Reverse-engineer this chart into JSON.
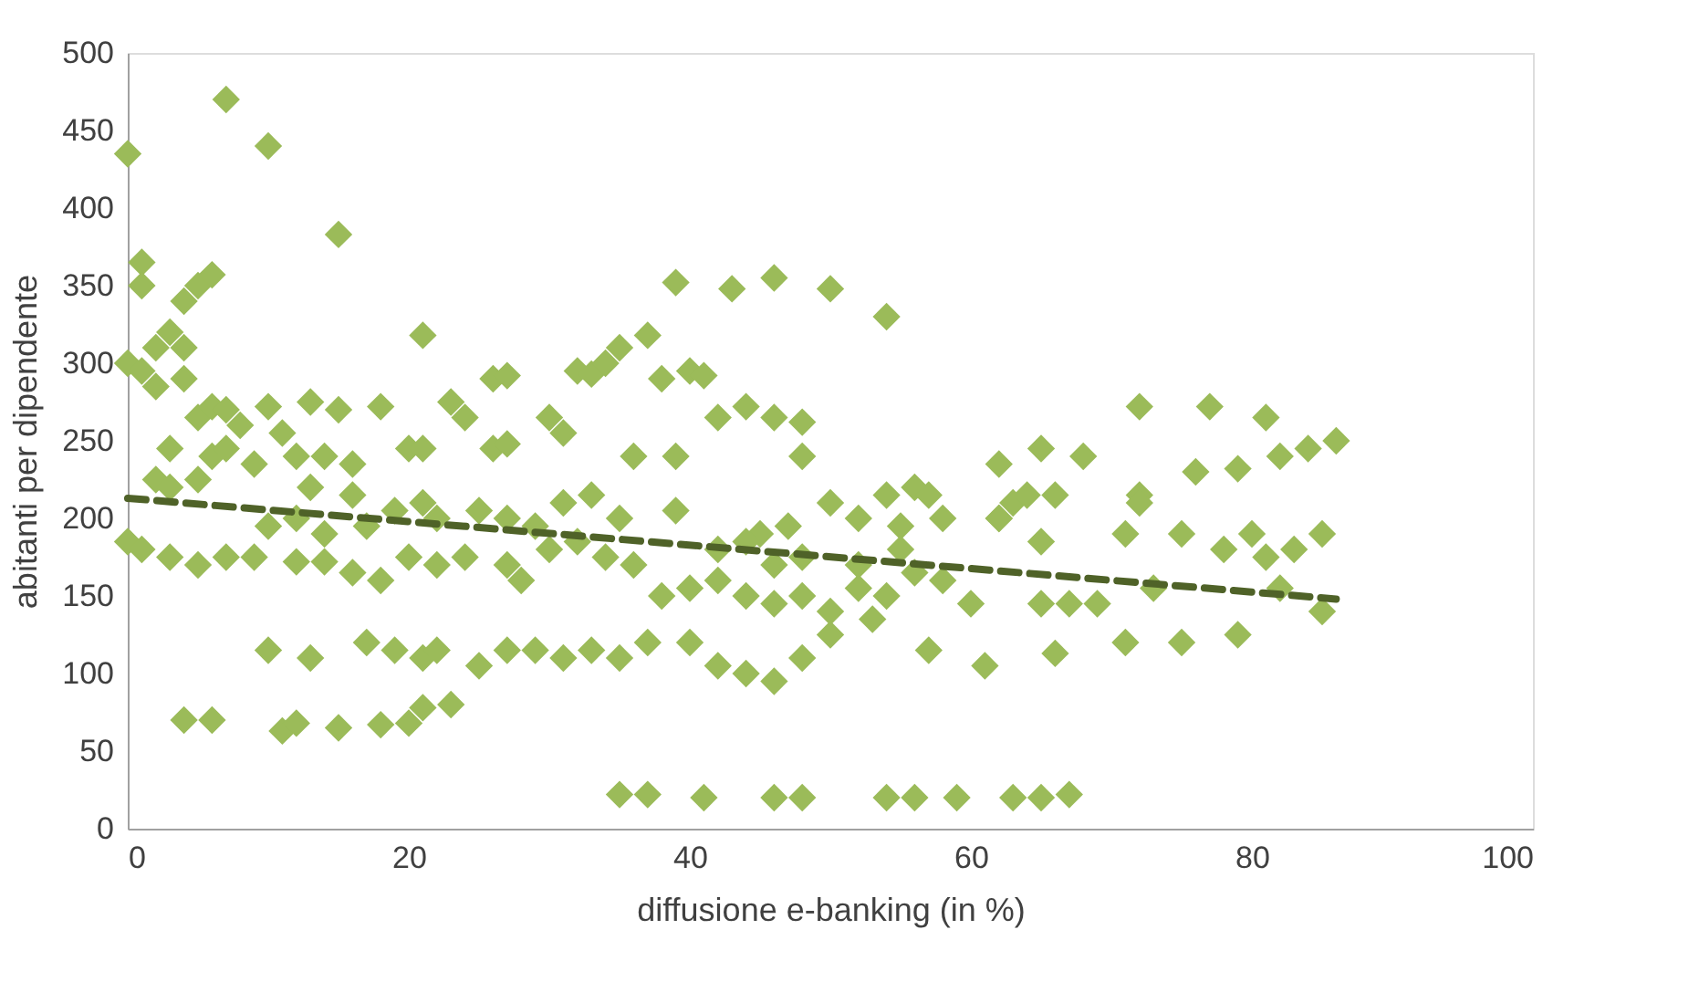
{
  "chart_data": {
    "type": "scatter",
    "xlabel": "diffusione e-banking (in %)",
    "ylabel": "abitanti per dipendente",
    "xlim": [
      0,
      100
    ],
    "ylim": [
      0,
      500
    ],
    "xticks": [
      0,
      20,
      40,
      60,
      80,
      100
    ],
    "yticks": [
      0,
      50,
      100,
      150,
      200,
      250,
      300,
      350,
      400,
      450,
      500
    ],
    "grid": false,
    "series": [
      {
        "color": "#9bbb59",
        "marker": "diamond",
        "x": [
          0,
          7,
          10,
          15,
          1,
          1,
          5,
          6,
          4,
          21,
          3,
          2,
          4,
          0,
          1,
          2,
          4,
          5,
          6,
          7,
          3,
          2,
          3,
          5,
          6,
          7,
          10,
          8,
          9,
          11,
          12,
          13,
          13,
          14,
          15,
          16,
          18,
          20,
          21,
          16,
          19,
          21,
          23,
          24,
          26,
          27,
          26,
          27,
          30,
          31,
          32,
          33,
          34,
          35,
          37,
          38,
          40,
          41,
          39,
          43,
          46,
          50,
          54,
          36,
          39,
          39,
          42,
          44,
          46,
          48,
          48,
          47,
          45,
          50,
          52,
          54,
          56,
          57,
          55,
          58,
          62,
          62,
          63,
          64,
          65,
          66,
          68,
          65,
          72,
          72,
          71,
          76,
          77,
          79,
          80,
          81,
          82,
          84,
          86,
          85,
          83,
          81,
          78,
          75,
          72,
          0,
          1,
          3,
          5,
          7,
          9,
          12,
          14,
          16,
          18,
          20,
          22,
          24,
          27,
          28,
          30,
          32,
          34,
          36,
          38,
          40,
          42,
          44,
          46,
          48,
          50,
          52,
          54,
          56,
          58,
          62,
          67,
          69,
          71,
          73,
          75,
          79,
          82,
          85,
          60,
          57,
          65,
          66,
          61,
          4,
          6,
          11,
          12,
          15,
          18,
          20,
          21,
          23,
          10,
          13,
          17,
          19,
          21,
          22,
          25,
          27,
          29,
          31,
          33,
          35,
          37,
          40,
          42,
          44,
          46,
          48,
          50,
          53,
          35,
          37,
          41,
          46,
          48,
          54,
          56,
          59,
          63,
          65,
          67,
          10,
          12,
          14,
          17,
          22,
          25,
          27,
          29,
          31,
          33,
          35,
          42,
          44,
          46,
          48,
          52,
          55
        ],
        "values": [
          435,
          470,
          440,
          383,
          365,
          350,
          350,
          357,
          340,
          318,
          320,
          310,
          310,
          300,
          295,
          285,
          290,
          265,
          272,
          270,
          245,
          225,
          220,
          225,
          240,
          245,
          272,
          260,
          235,
          255,
          240,
          275,
          220,
          240,
          270,
          235,
          272,
          245,
          245,
          215,
          205,
          210,
          275,
          265,
          290,
          292,
          245,
          248,
          265,
          255,
          295,
          293,
          300,
          310,
          318,
          290,
          295,
          292,
          352,
          348,
          355,
          348,
          330,
          240,
          240,
          205,
          265,
          272,
          265,
          262,
          240,
          195,
          190,
          210,
          200,
          215,
          220,
          215,
          195,
          200,
          235,
          200,
          210,
          215,
          245,
          215,
          240,
          185,
          272,
          215,
          190,
          230,
          272,
          232,
          190,
          265,
          240,
          245,
          250,
          190,
          180,
          175,
          180,
          190,
          210,
          185,
          180,
          175,
          170,
          175,
          175,
          172,
          172,
          165,
          160,
          175,
          170,
          175,
          170,
          160,
          180,
          185,
          175,
          170,
          150,
          155,
          160,
          150,
          145,
          150,
          140,
          155,
          150,
          165,
          160,
          200,
          145,
          145,
          120,
          155,
          120,
          125,
          155,
          140,
          145,
          115,
          145,
          113,
          105,
          70,
          70,
          63,
          68,
          65,
          67,
          68,
          78,
          80,
          115,
          110,
          120,
          115,
          110,
          115,
          105,
          115,
          115,
          110,
          115,
          110,
          120,
          120,
          105,
          100,
          95,
          110,
          125,
          135,
          22,
          22,
          20,
          20,
          20,
          20,
          20,
          20,
          20,
          20,
          22,
          195,
          200,
          190,
          195,
          200,
          205,
          200,
          195,
          210,
          215,
          200,
          180,
          185,
          170,
          175,
          170,
          180
        ]
      },
      {
        "type": "line",
        "color": "#4f6228",
        "line_style": "dashed",
        "marker": "none",
        "x": [
          0,
          86
        ],
        "values": [
          213,
          148
        ]
      }
    ]
  }
}
